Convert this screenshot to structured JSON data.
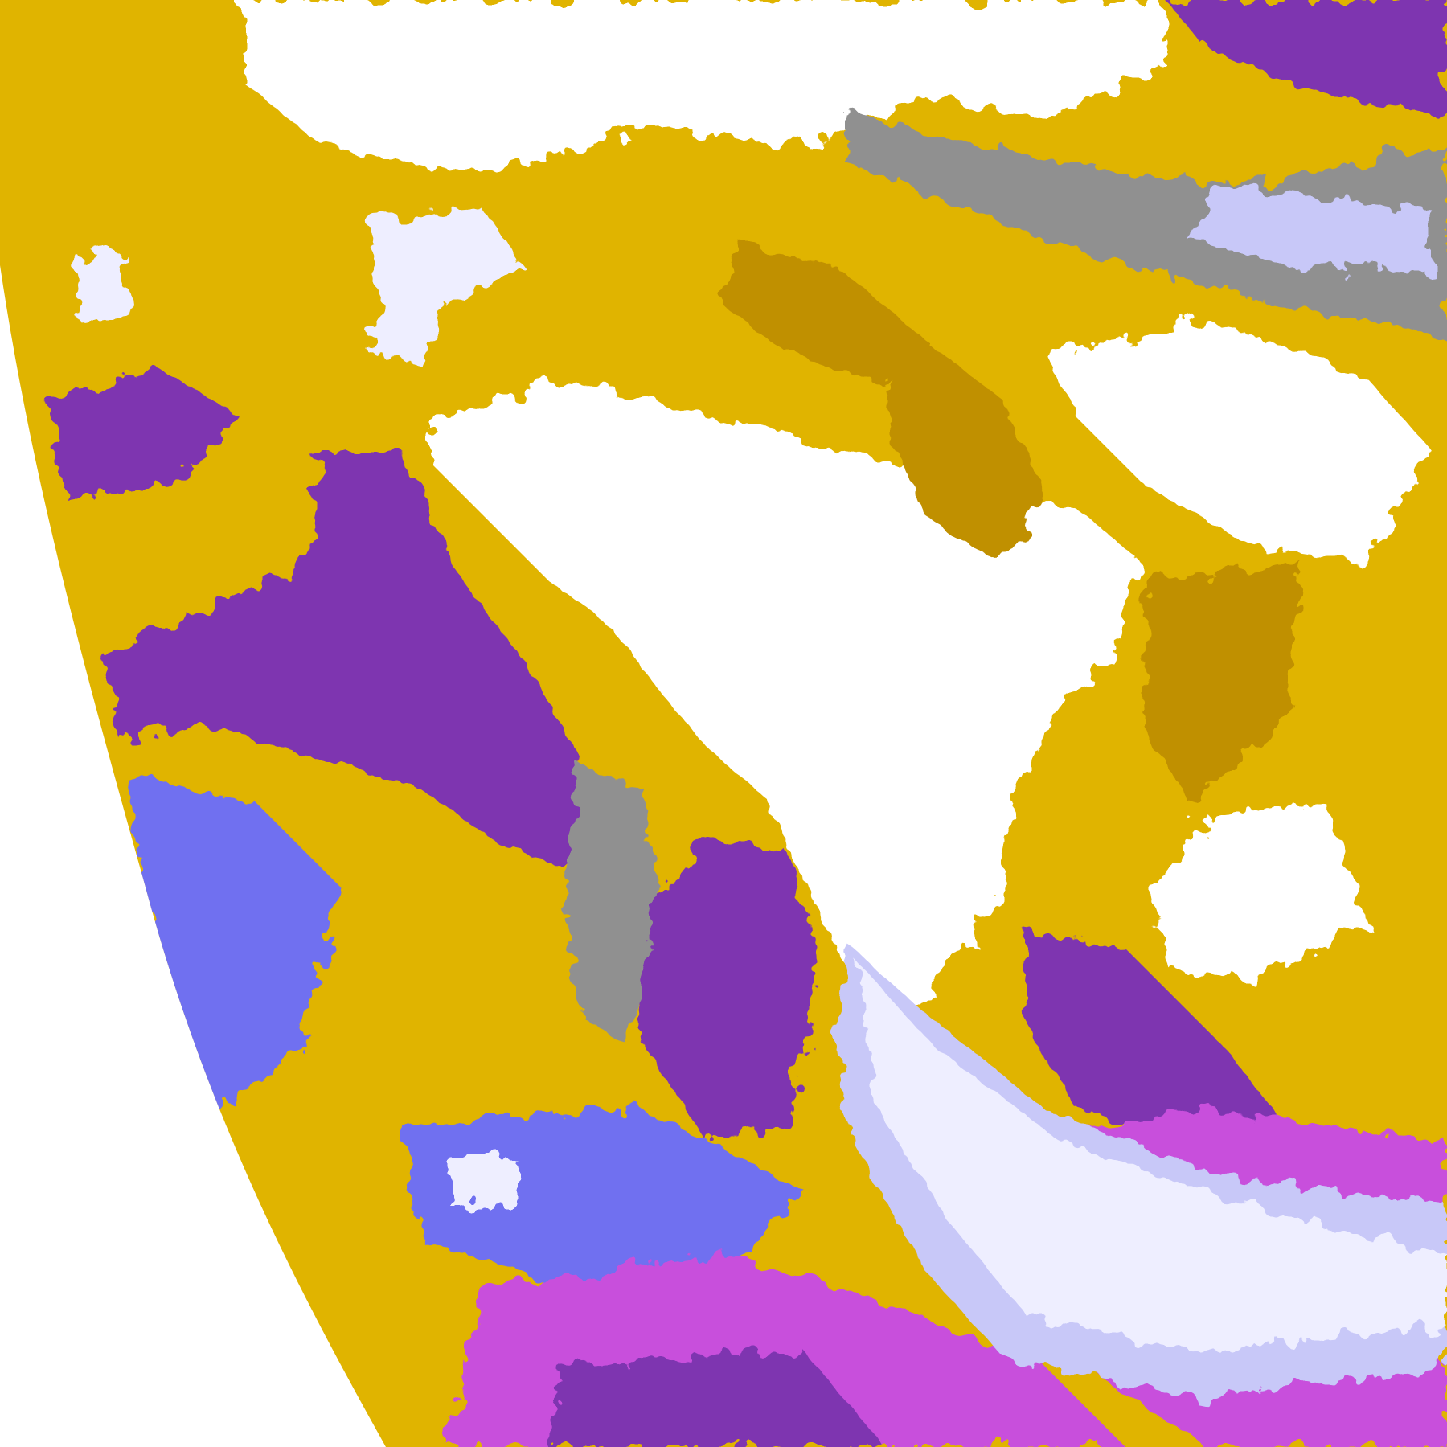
{
  "map": {
    "palette": {
      "space": "#ffffff",
      "gold": "#e0b400",
      "dark_gold": "#c09000",
      "purple": "#7e35b0",
      "magenta": "#c850dc",
      "blue_violet": "#7070f0",
      "lavender": "#c8c8f8",
      "pale_lavender": "#eeeeff",
      "gray": "#909090",
      "land_clear": "#ffffff"
    }
  }
}
